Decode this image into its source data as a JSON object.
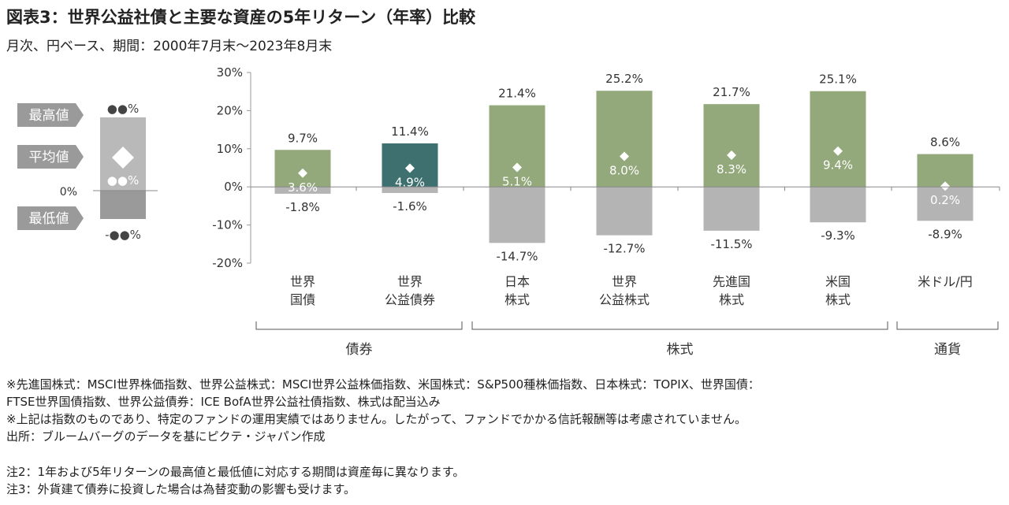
{
  "title": "図表3：世界公益社債と主要な資産の5年リターン（年率）比較",
  "subtitle": "月次、円ベース、期間：2000年7月末～2023年8月末",
  "colors": {
    "bond_green": "#93a97b",
    "corp_bond_teal": "#3e7070",
    "negative_gray": "#b4b4b4",
    "legend_gray": "#9a9a9a"
  },
  "legend": {
    "max_label": "最高値",
    "avg_label": "平均値",
    "min_label": "最低値",
    "max_value": "●●%",
    "avg_value": "●●%",
    "min_value": "-●●%",
    "zero_label": "0%",
    "avg_marker_icon": "diamond-icon"
  },
  "chart_data": {
    "type": "bar",
    "categories": [
      "世界\n国債",
      "世界\n公益債券",
      "日本\n株式",
      "世界\n公益株式",
      "先進国\n株式",
      "米国\n株式",
      "米ドル/円"
    ],
    "series": [
      {
        "name": "最高値",
        "values": [
          9.7,
          11.4,
          21.4,
          25.2,
          21.7,
          25.1,
          8.6
        ]
      },
      {
        "name": "平均値",
        "values": [
          3.6,
          4.9,
          5.1,
          8.0,
          8.3,
          9.4,
          0.2
        ]
      },
      {
        "name": "最低値",
        "values": [
          -1.8,
          -1.6,
          -14.7,
          -12.7,
          -11.5,
          -9.3,
          -8.9
        ]
      }
    ],
    "labels": {
      "max": [
        "9.7%",
        "11.4%",
        "21.4%",
        "25.2%",
        "21.7%",
        "25.1%",
        "8.6%"
      ],
      "avg": [
        "3.6%",
        "4.9%",
        "5.1%",
        "8.0%",
        "8.3%",
        "9.4%",
        "0.2%"
      ],
      "min": [
        "-1.8%",
        "-1.6%",
        "-14.7%",
        "-12.7%",
        "-11.5%",
        "-9.3%",
        "-8.9%"
      ]
    },
    "yticks": [
      "30%",
      "20%",
      "10%",
      "0%",
      "-10%",
      "-20%"
    ],
    "ytick_values": [
      30,
      20,
      10,
      0,
      -10,
      -20
    ],
    "ylim": [
      -20,
      30
    ],
    "groups": [
      {
        "label": "債券",
        "from": 0,
        "to": 1
      },
      {
        "label": "株式",
        "from": 2,
        "to": 5
      },
      {
        "label": "通貨",
        "from": 6,
        "to": 6
      }
    ],
    "highlight_index": 1,
    "grid": false
  },
  "notes": [
    "※先進国株式：MSCI世界株価指数、世界公益株式：MSCI世界公益株価指数、米国株式：S&P500種株価指数、日本株式：TOPIX、世界国債：",
    "FTSE世界国債指数、世界公益債券：ICE BofA世界公益社債指数、株式は配当込み",
    "※上記は指数のものであり、特定のファンドの運用実績ではありません。したがって、ファンドでかかる信託報酬等は考慮されていません。",
    "出所：ブルームバーグのデータを基にピクテ・ジャパン作成"
  ],
  "footnotes": [
    "注2：1年および5年リターンの最高値と最低値に対応する期間は資産毎に異なります。",
    "注3：外貨建て債券に投資した場合は為替変動の影響も受けます。"
  ]
}
